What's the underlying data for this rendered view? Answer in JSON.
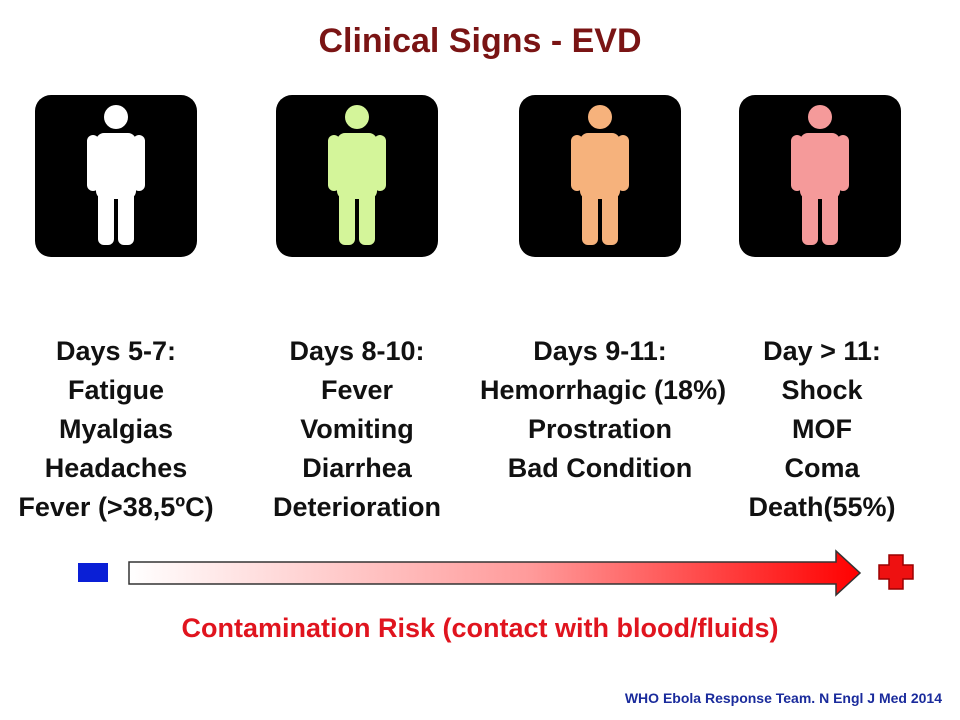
{
  "title": "Clinical Signs - EVD",
  "stages": [
    {
      "header": "Days 5-7:",
      "signs": [
        "Fatigue",
        "Myalgias",
        "Headaches",
        "Fever (>38,5ºC)"
      ],
      "figure_color": "#ffffff"
    },
    {
      "header": "Days 8-10:",
      "signs": [
        "Fever",
        "Vomiting",
        "Diarrhea",
        "Deterioration"
      ],
      "figure_color": "#d4f59a"
    },
    {
      "header": "Days 9-11:",
      "signs": [
        "Hemorrhagic (18%)",
        "Prostration",
        "Bad Condition"
      ],
      "figure_color": "#f6b27c"
    },
    {
      "header": "Day > 11:",
      "signs": [
        "Shock",
        "MOF",
        "Coma",
        "Death(55%)"
      ],
      "figure_color": "#f59a9a"
    }
  ],
  "timeline": {
    "start_marker_color": "#0a1fd6",
    "arrow_color_start": "#ffffff",
    "arrow_color_end": "#ff0000",
    "end_icon": "red-cross-icon",
    "end_icon_color": "#ee1111"
  },
  "risk_label": "Contamination Risk (contact with blood/fluids)",
  "citation": "WHO Ebola Response Team. N Engl J Med 2014",
  "colors": {
    "title": "#7a1414",
    "risk": "#e0141e",
    "citation": "#1a2b9c"
  }
}
